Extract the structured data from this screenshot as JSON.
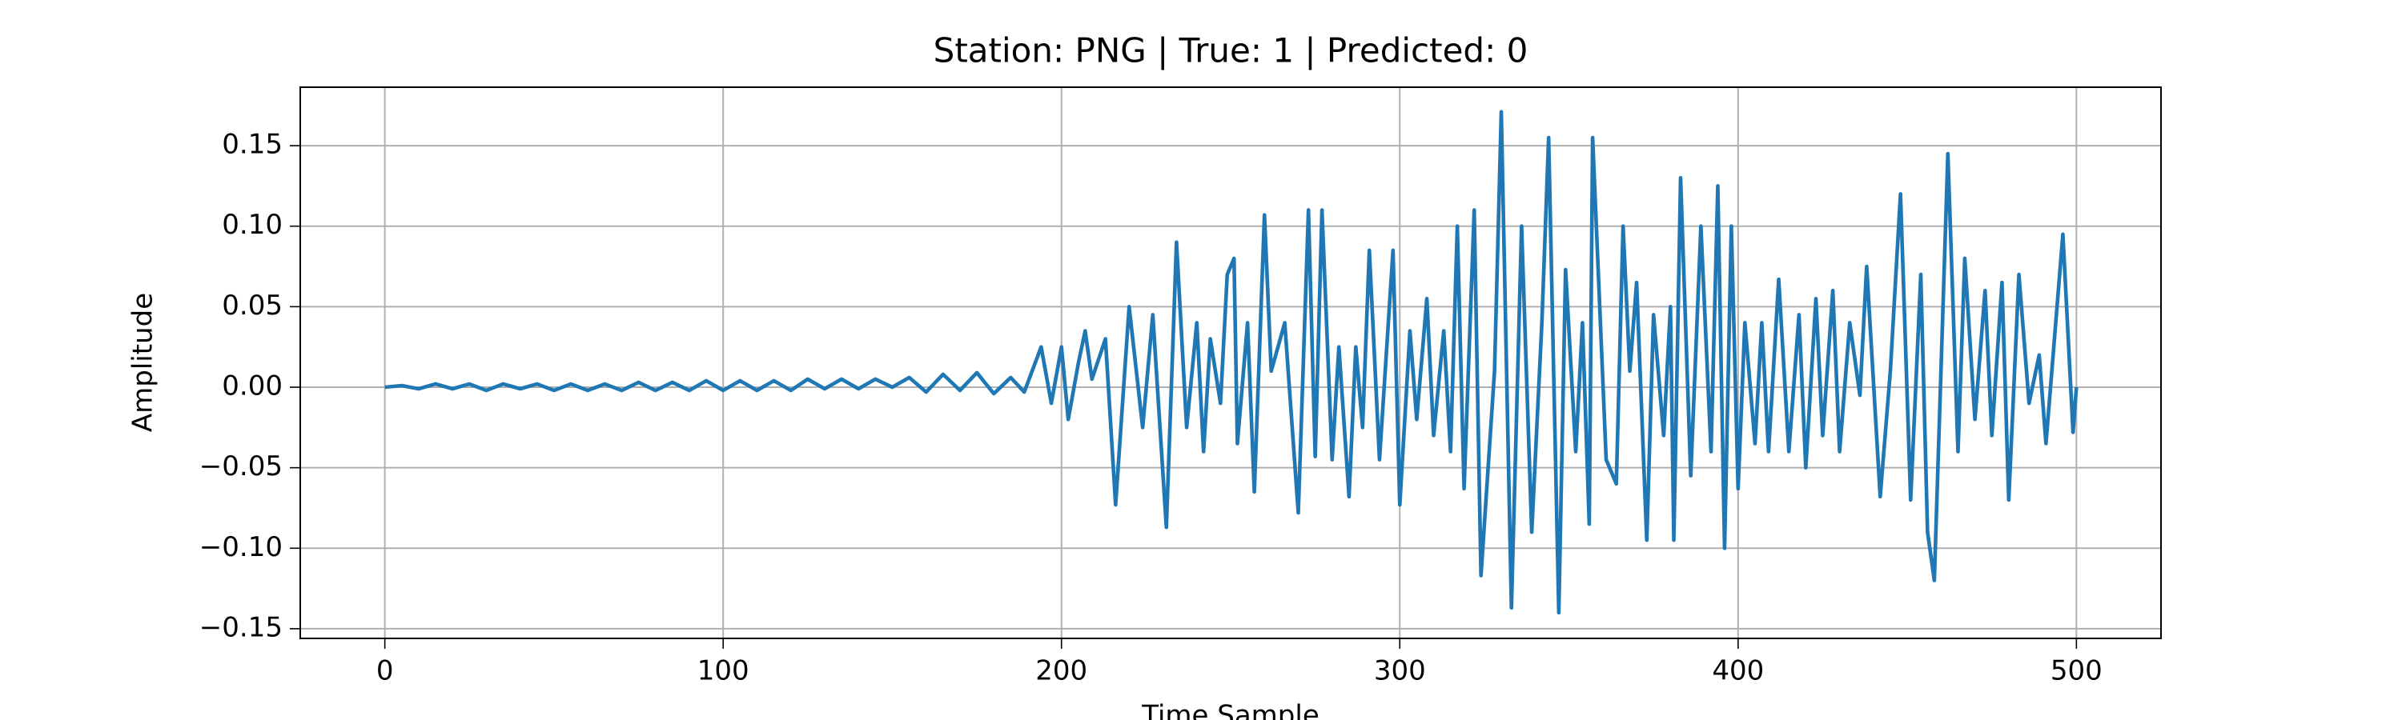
{
  "chart_data": {
    "type": "line",
    "title": "Station: PNG | True: 1 | Predicted: 0",
    "xlabel": "Time Sample",
    "ylabel": "Amplitude",
    "color": "#1f77b4",
    "grid": true,
    "xlim": [
      -25,
      525
    ],
    "ylim": [
      -0.156,
      0.1863
    ],
    "xticks": [
      0,
      100,
      200,
      300,
      400,
      500
    ],
    "yticks": [
      {
        "value": -0.15,
        "label": "−0.15"
      },
      {
        "value": -0.1,
        "label": "−0.10"
      },
      {
        "value": -0.05,
        "label": "−0.05"
      },
      {
        "value": 0,
        "label": "0.00"
      },
      {
        "value": 0.05,
        "label": "0.05"
      },
      {
        "value": 0.1,
        "label": "0.10"
      },
      {
        "value": 0.15,
        "label": "0.15"
      }
    ],
    "x": [
      0,
      5,
      10,
      15,
      20,
      25,
      30,
      35,
      40,
      45,
      50,
      55,
      60,
      65,
      70,
      75,
      80,
      85,
      90,
      95,
      100,
      105,
      110,
      115,
      120,
      125,
      130,
      135,
      140,
      145,
      150,
      155,
      160,
      165,
      170,
      175,
      180,
      185,
      189,
      194,
      197,
      200,
      202,
      205,
      207,
      209,
      213,
      216,
      220,
      224,
      227,
      231,
      234,
      237,
      240,
      242,
      244,
      247,
      249,
      251,
      252,
      255,
      257,
      260,
      262,
      266,
      270,
      273,
      275,
      277,
      280,
      282,
      285,
      287,
      289,
      291,
      294,
      298,
      300,
      303,
      305,
      308,
      310,
      313,
      315,
      317,
      319,
      322,
      324,
      328,
      330,
      333,
      336,
      339,
      342,
      344,
      347,
      349,
      352,
      354,
      356,
      357,
      361,
      364,
      366,
      368,
      370,
      373,
      375,
      378,
      380,
      381,
      383,
      386,
      389,
      392,
      394,
      396,
      398,
      400,
      402,
      405,
      407,
      409,
      412,
      415,
      418,
      420,
      423,
      425,
      428,
      430,
      433,
      436,
      438,
      442,
      445,
      448,
      451,
      454,
      456,
      458,
      462,
      465,
      467,
      470,
      473,
      475,
      478,
      480,
      483,
      486,
      489,
      491,
      496,
      499,
      500
    ],
    "values": [
      0,
      0.001,
      -0.001,
      0.002,
      -0.001,
      0.002,
      -0.002,
      0.002,
      -0.001,
      0.002,
      -0.002,
      0.002,
      -0.002,
      0.002,
      -0.002,
      0.003,
      -0.002,
      0.003,
      -0.002,
      0.004,
      -0.002,
      0.004,
      -0.002,
      0.004,
      -0.002,
      0.005,
      -0.001,
      0.005,
      -0.001,
      0.005,
      0,
      0.006,
      -0.003,
      0.008,
      -0.002,
      0.009,
      -0.004,
      0.006,
      -0.003,
      0.025,
      -0.01,
      0.025,
      -0.02,
      0.015,
      0.035,
      0.005,
      0.03,
      -0.073,
      0.05,
      -0.025,
      0.045,
      -0.087,
      0.09,
      -0.025,
      0.04,
      -0.04,
      0.03,
      -0.01,
      0.07,
      0.08,
      -0.035,
      0.04,
      -0.065,
      0.107,
      0.01,
      0.04,
      -0.078,
      0.11,
      -0.043,
      0.11,
      -0.045,
      0.025,
      -0.068,
      0.025,
      -0.025,
      0.085,
      -0.045,
      0.085,
      -0.073,
      0.035,
      -0.02,
      0.055,
      -0.03,
      0.035,
      -0.04,
      0.1,
      -0.063,
      0.11,
      -0.117,
      0.01,
      0.171,
      -0.137,
      0.1,
      -0.09,
      0.04,
      0.155,
      -0.14,
      0.073,
      -0.04,
      0.04,
      -0.085,
      0.155,
      -0.045,
      -0.06,
      0.1,
      0.01,
      0.065,
      -0.095,
      0.045,
      -0.03,
      0.05,
      -0.095,
      0.13,
      -0.055,
      0.1,
      -0.04,
      0.125,
      -0.1,
      0.1,
      -0.063,
      0.04,
      -0.035,
      0.04,
      -0.04,
      0.067,
      -0.04,
      0.045,
      -0.05,
      0.055,
      -0.03,
      0.06,
      -0.04,
      0.04,
      -0.005,
      0.075,
      -0.068,
      0.01,
      0.12,
      -0.07,
      0.07,
      -0.09,
      -0.12,
      0.145,
      -0.04,
      0.08,
      -0.02,
      0.06,
      -0.03,
      0.065,
      -0.07,
      0.07,
      -0.01,
      0.02,
      -0.035,
      0.095,
      -0.028,
      0
    ]
  }
}
